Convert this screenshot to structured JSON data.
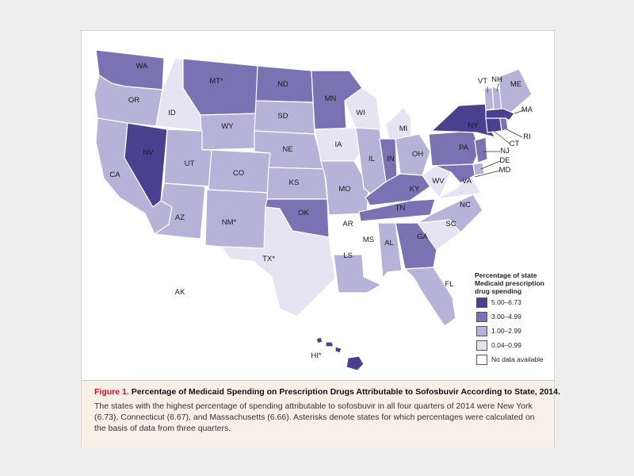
{
  "legend": {
    "title": "Percentage of state Medicaid prescription drug spending",
    "items": [
      {
        "label": "5.00–6.73",
        "color": "#4b3f8f"
      },
      {
        "label": "3.00–4.99",
        "color": "#7a72b3"
      },
      {
        "label": "1.00–2.99",
        "color": "#b6b2d8"
      },
      {
        "label": "0.04–0.99",
        "color": "#e6e4f2"
      },
      {
        "label": "No data available",
        "color": "#ffffff"
      }
    ]
  },
  "states": {
    "WA": {
      "label": "WA",
      "category": "3.00–4.99"
    },
    "OR": {
      "label": "OR",
      "category": "1.00–2.99"
    },
    "CA": {
      "label": "CA",
      "category": "1.00–2.99"
    },
    "NV": {
      "label": "NV",
      "category": "5.00–6.73"
    },
    "ID": {
      "label": "ID",
      "category": "0.04–0.99"
    },
    "MT": {
      "label": "MT*",
      "category": "3.00–4.99"
    },
    "WY": {
      "label": "WY",
      "category": "1.00–2.99"
    },
    "UT": {
      "label": "UT",
      "category": "1.00–2.99"
    },
    "AZ": {
      "label": "AZ",
      "category": "1.00–2.99"
    },
    "CO": {
      "label": "CO",
      "category": "1.00–2.99"
    },
    "NM": {
      "label": "NM*",
      "category": "1.00–2.99"
    },
    "ND": {
      "label": "ND",
      "category": "3.00–4.99"
    },
    "SD": {
      "label": "SD",
      "category": "1.00–2.99"
    },
    "NE": {
      "label": "NE",
      "category": "1.00–2.99"
    },
    "KS": {
      "label": "KS",
      "category": "1.00–2.99"
    },
    "OK": {
      "label": "OK",
      "category": "3.00–4.99"
    },
    "TX": {
      "label": "TX*",
      "category": "0.04–0.99"
    },
    "MN": {
      "label": "MN",
      "category": "3.00–4.99"
    },
    "IA": {
      "label": "IA",
      "category": "0.04–0.99"
    },
    "MO": {
      "label": "MO",
      "category": "1.00–2.99"
    },
    "AR": {
      "label": "AR",
      "category": "No data available"
    },
    "LS": {
      "label": "LS",
      "category": "1.00–2.99"
    },
    "WI": {
      "label": "WI",
      "category": "0.04–0.99"
    },
    "IL": {
      "label": "IL",
      "category": "1.00–2.99"
    },
    "MI": {
      "label": "MI",
      "category": "0.04–0.99"
    },
    "IN": {
      "label": "IN",
      "category": "3.00–4.99"
    },
    "OH": {
      "label": "OH",
      "category": "1.00–2.99"
    },
    "KY": {
      "label": "KY",
      "category": "3.00–4.99"
    },
    "TN": {
      "label": "TN",
      "category": "3.00–4.99"
    },
    "MS": {
      "label": "MS",
      "category": "No data available"
    },
    "AL": {
      "label": "AL",
      "category": "1.00–2.99"
    },
    "GA": {
      "label": "GA",
      "category": "3.00–4.99"
    },
    "FL": {
      "label": "FL",
      "category": "1.00–2.99"
    },
    "SC": {
      "label": "SC",
      "category": "0.04–0.99"
    },
    "NC": {
      "label": "NC",
      "category": "1.00–2.99"
    },
    "VA": {
      "label": "VA",
      "category": "0.04–0.99"
    },
    "WV": {
      "label": "WV",
      "category": "0.04–0.99"
    },
    "PA": {
      "label": "PA",
      "category": "3.00–4.99"
    },
    "NY": {
      "label": "NY",
      "category": "5.00–6.73"
    },
    "VT": {
      "label": "VT",
      "category": "1.00–2.99"
    },
    "NH": {
      "label": "NH",
      "category": "1.00–2.99"
    },
    "ME": {
      "label": "ME",
      "category": "1.00–2.99"
    },
    "MA": {
      "label": "MA",
      "category": "5.00–6.73"
    },
    "CT": {
      "label": "CT",
      "category": "5.00–6.73"
    },
    "RI": {
      "label": "RI",
      "category": "3.00–4.99"
    },
    "NJ": {
      "label": "NJ",
      "category": "3.00–4.99"
    },
    "DE": {
      "label": "DE",
      "category": "1.00–2.99"
    },
    "MD": {
      "label": "MD",
      "category": "3.00–4.99"
    },
    "AK": {
      "label": "AK",
      "category": "No data available"
    },
    "HI": {
      "label": "HI*",
      "category": "5.00–6.73"
    }
  },
  "caption": {
    "figure_label": "Figure 1.",
    "title": "Percentage of Medicaid Spending on Prescription Drugs Attributable to Sofosbuvir According to State, 2014.",
    "body": "The states with the highest percentage of spending attributable to sofosbuvir in all four quarters of 2014 were New York (6.73), Connecticut (6.67), and Massachusetts (6.66). Asterisks denote states for which percentages were calculated on the basis of data from three quarters."
  }
}
